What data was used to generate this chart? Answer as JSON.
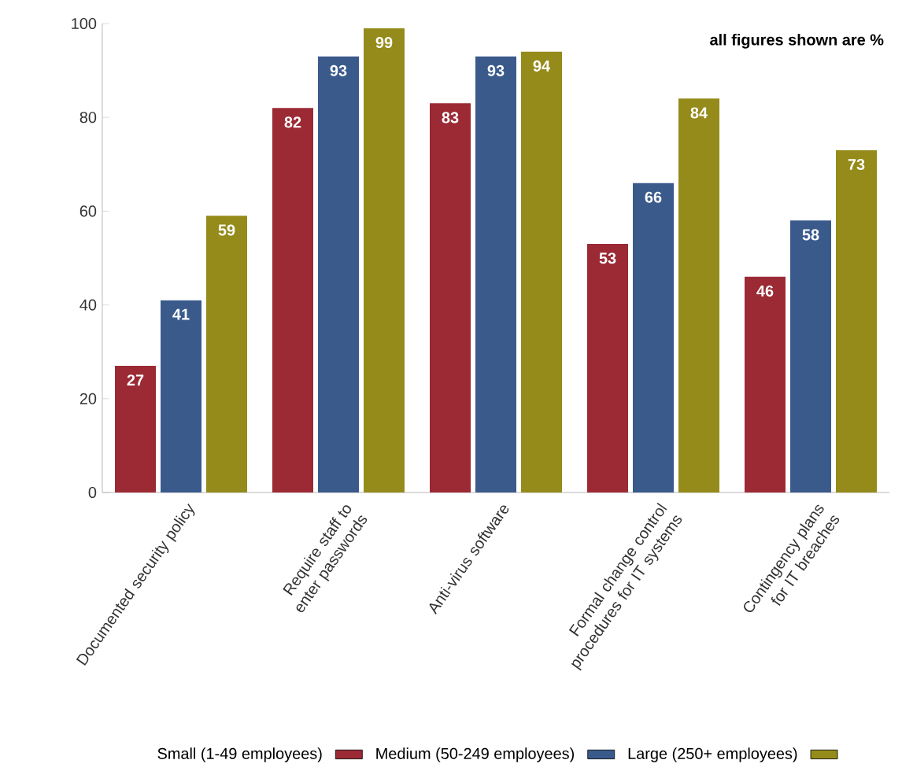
{
  "chart_data": {
    "type": "bar",
    "annotations": [
      "all figures shown are %"
    ],
    "categories": [
      "Documented security policy",
      "Require staff to enter passwords",
      "Anti-virus software",
      "Formal change control procedures for IT systems",
      "Contingency plans for IT breaches"
    ],
    "series": [
      {
        "name": "Small (1-49 employees)",
        "color": "#9b2a35",
        "values": [
          27,
          82,
          83,
          53,
          46
        ]
      },
      {
        "name": "Medium (50-249 employees)",
        "color": "#3a5a8c",
        "values": [
          41,
          93,
          93,
          66,
          58
        ]
      },
      {
        "name": "Large (250+ employees)",
        "color": "#948b1a",
        "values": [
          59,
          99,
          94,
          84,
          73
        ]
      }
    ],
    "ylim": [
      0,
      100
    ],
    "yticks": [
      0,
      20,
      40,
      60,
      80,
      100
    ],
    "data_labels": true,
    "legend": "bottom",
    "grid": false
  }
}
